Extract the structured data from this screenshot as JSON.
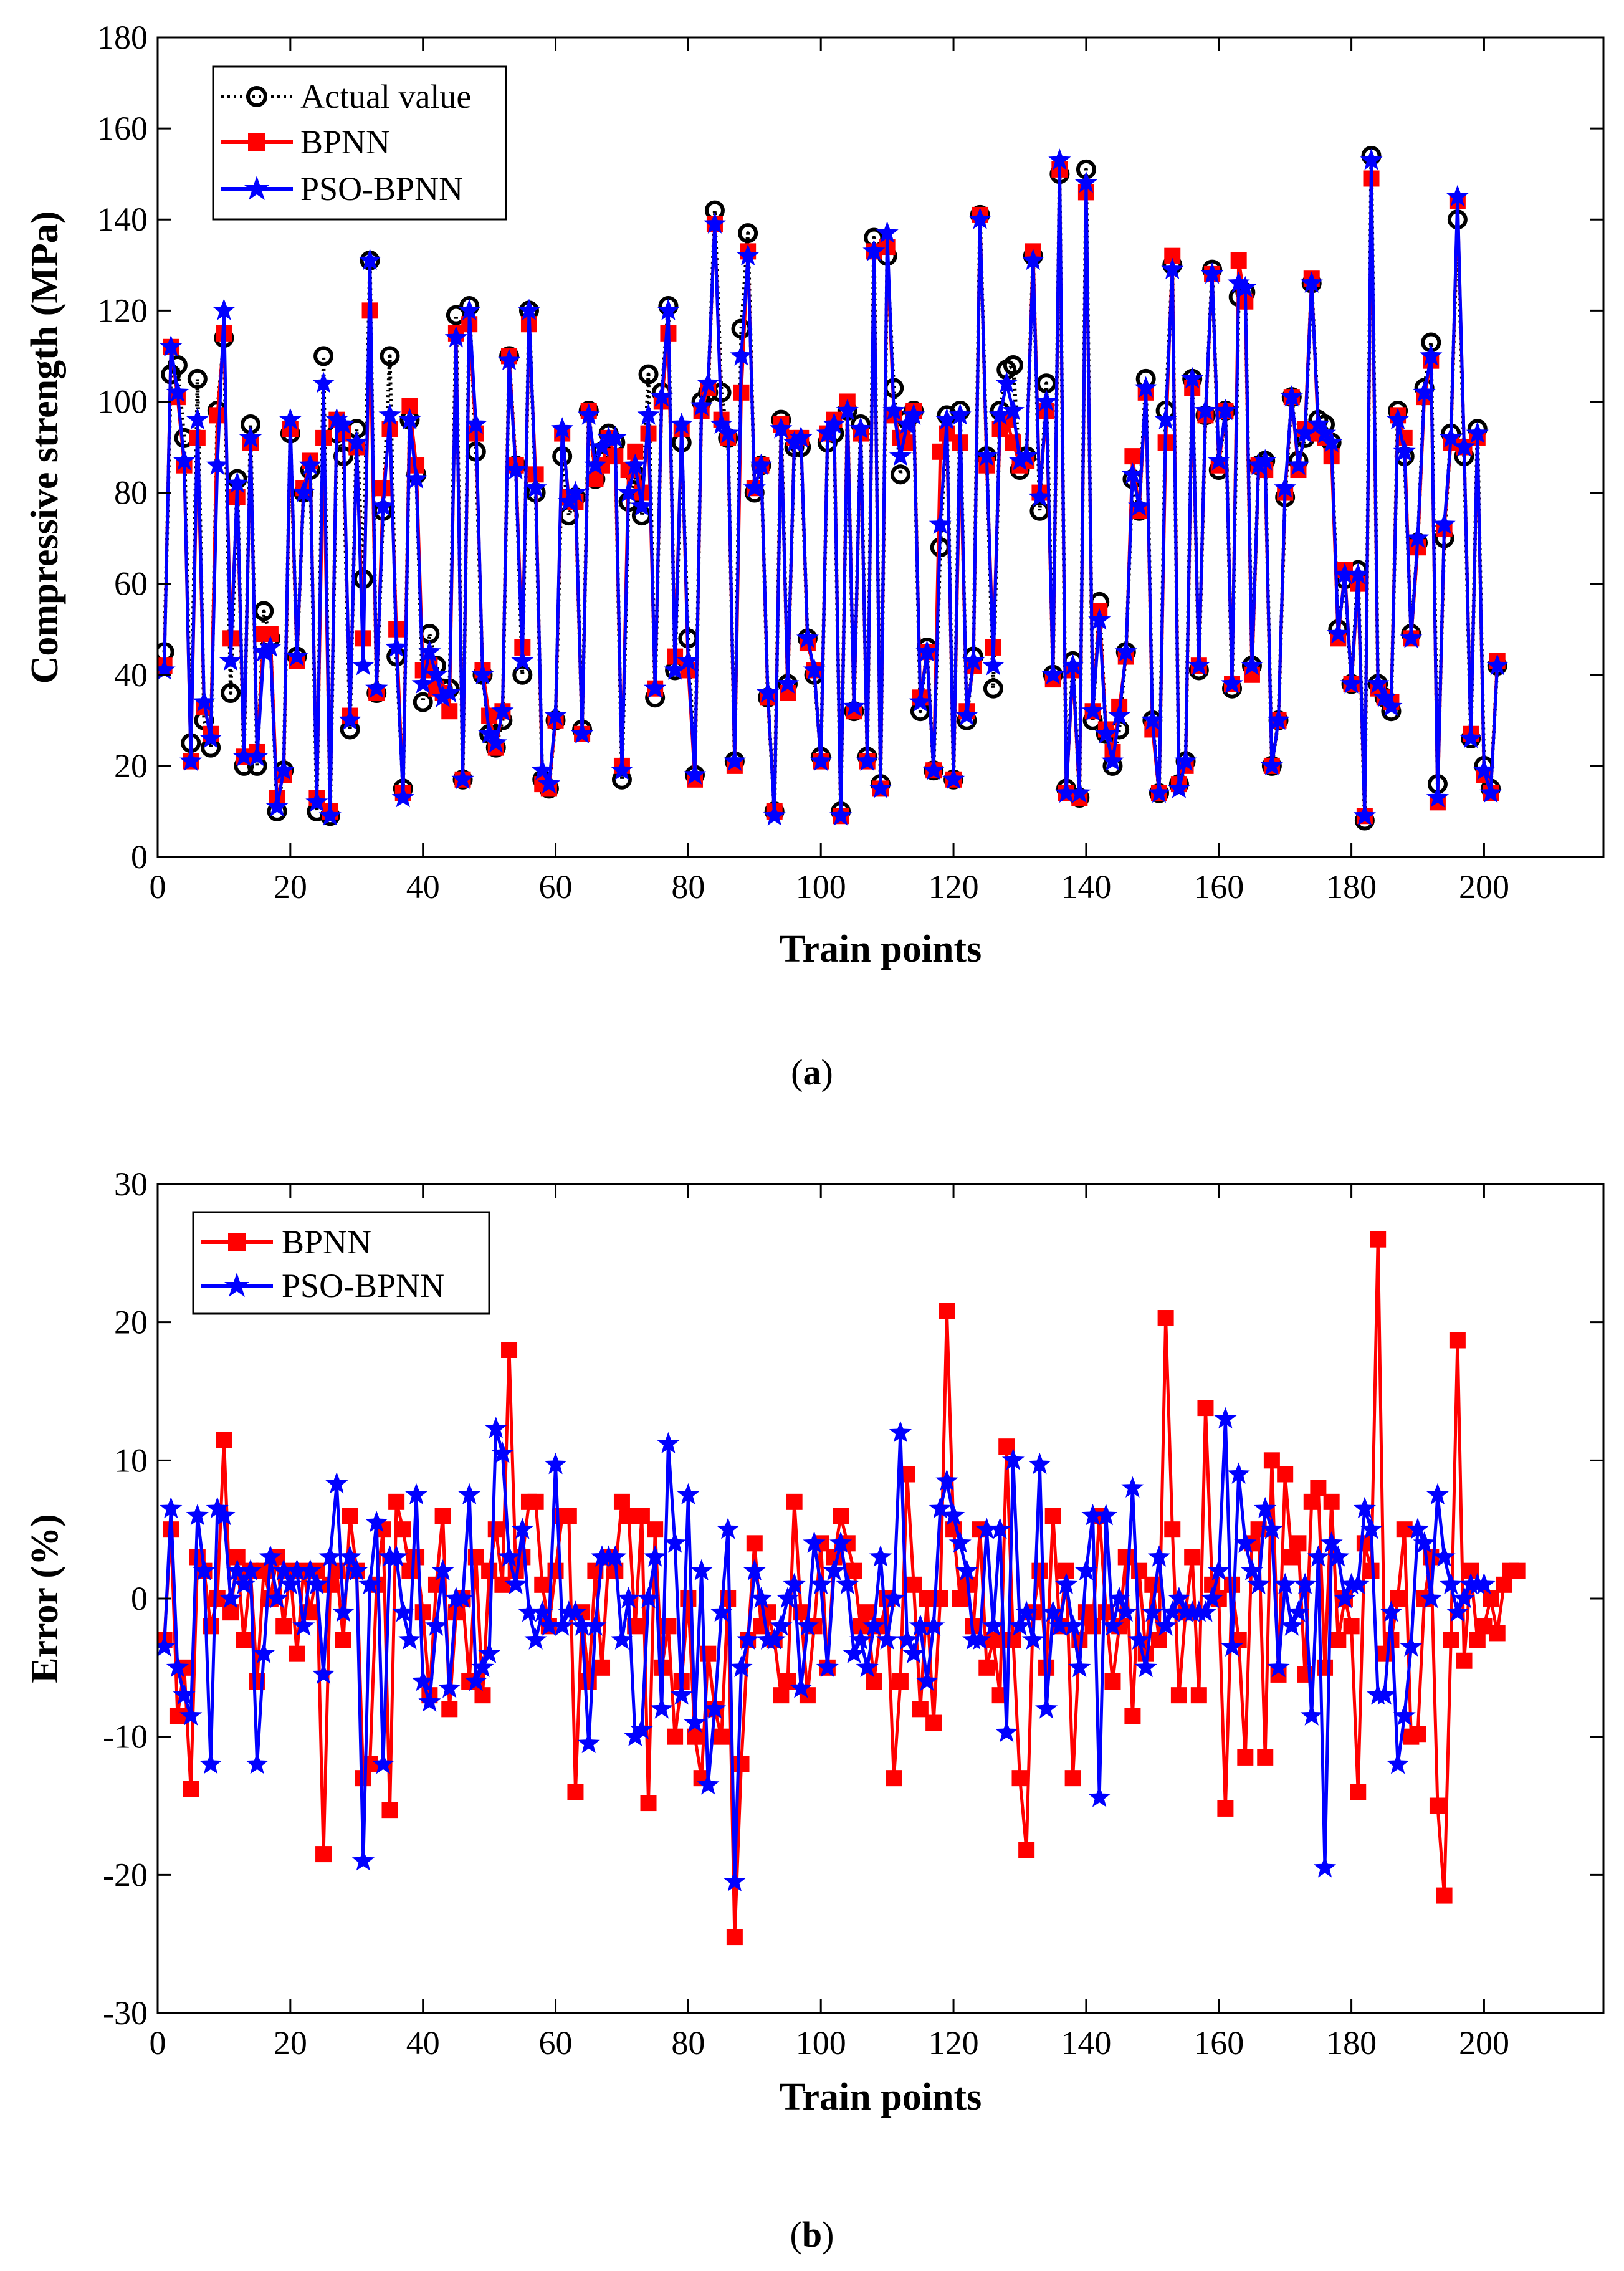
{
  "chart_data": [
    {
      "type": "line",
      "panel": "a",
      "caption_letter": "a",
      "xlabel": "Train points",
      "ylabel": "Compressive strength (MPa)",
      "xlim": [
        0,
        218
      ],
      "ylim": [
        0,
        180
      ],
      "xticks": [
        0,
        20,
        40,
        60,
        80,
        100,
        120,
        140,
        160,
        180,
        200
      ],
      "yticks": [
        0,
        20,
        40,
        60,
        80,
        100,
        120,
        140,
        160,
        180
      ],
      "legend_position": "top-left",
      "grid": false,
      "series": [
        {
          "name": "Actual value",
          "color": "#000000",
          "marker": "circle",
          "line": "dotted",
          "values": [
            45,
            106,
            108,
            92,
            25,
            105,
            30,
            24,
            98,
            114,
            36,
            83,
            20,
            95,
            20,
            54,
            48,
            10,
            19,
            93,
            44,
            80,
            85,
            10,
            110,
            9,
            93,
            88,
            28,
            94,
            61,
            131,
            36,
            76,
            110,
            44,
            15,
            96,
            84,
            34,
            49,
            42,
            37,
            37,
            119,
            17,
            121,
            89,
            40,
            27,
            24,
            30,
            110,
            86,
            40,
            120,
            80,
            17,
            15,
            30,
            88,
            75,
            79,
            28,
            98,
            83,
            89,
            93,
            91,
            17,
            78,
            84,
            75,
            106,
            35,
            102,
            121,
            41,
            91,
            48,
            18,
            100,
            102,
            142,
            102,
            92,
            21,
            116,
            137,
            80,
            86,
            35,
            10,
            96,
            38,
            90,
            90,
            48,
            40,
            22,
            91,
            93,
            10,
            98,
            32,
            95,
            22,
            136,
            16,
            132,
            103,
            84,
            96,
            98,
            32,
            46,
            19,
            68,
            97,
            17,
            98,
            30,
            44,
            141,
            88,
            37,
            98,
            107,
            108,
            85,
            88,
            132,
            76,
            104,
            40,
            150,
            15,
            43,
            13,
            151,
            30,
            56,
            27,
            20,
            28,
            45,
            83,
            76,
            105,
            30,
            14,
            98,
            130,
            16,
            21,
            105,
            41,
            97,
            129,
            85,
            98,
            37,
            123,
            124,
            42,
            86,
            87,
            20,
            30,
            79,
            101,
            87,
            92,
            126,
            96,
            95,
            91,
            50,
            61,
            38,
            63,
            8,
            154,
            38,
            35,
            32,
            98,
            88,
            49,
            69,
            103,
            113,
            16,
            70,
            93,
            140,
            88,
            26,
            94,
            20,
            15,
            42
          ]
        },
        {
          "name": "BPNN",
          "color": "#ff0000",
          "marker": "square",
          "line": "solid",
          "values": [
            42,
            112,
            101,
            86,
            21,
            92,
            33,
            27,
            97,
            115,
            48,
            79,
            22,
            91,
            23,
            49,
            49,
            13,
            18,
            94,
            43,
            81,
            87,
            13,
            92,
            10,
            96,
            93,
            31,
            90,
            48,
            120,
            36,
            81,
            94,
            50,
            14,
            99,
            86,
            41,
            42,
            37,
            36,
            32,
            115,
            17,
            117,
            93,
            41,
            31,
            24,
            32,
            110,
            86,
            46,
            117,
            84,
            16,
            15,
            30,
            93,
            79,
            78,
            27,
            98,
            83,
            86,
            92,
            88,
            20,
            85,
            89,
            80,
            93,
            37,
            100,
            115,
            44,
            94,
            41,
            17,
            98,
            103,
            139,
            96,
            92,
            20,
            102,
            133,
            81,
            86,
            35,
            10,
            95,
            36,
            92,
            92,
            47,
            41,
            21,
            93,
            96,
            9,
            100,
            32,
            93,
            21,
            133,
            15,
            134,
            97,
            92,
            91,
            98,
            35,
            45,
            19,
            89,
            93,
            17,
            91,
            32,
            42,
            141,
            86,
            46,
            94,
            96,
            91,
            86,
            87,
            133,
            80,
            98,
            39,
            151,
            14,
            41,
            13,
            146,
            32,
            54,
            28,
            23,
            33,
            44,
            88,
            76,
            102,
            28,
            14,
            91,
            132,
            16,
            20,
            103,
            42,
            97,
            128,
            86,
            98,
            38,
            131,
            122,
            40,
            86,
            85,
            20,
            30,
            80,
            101,
            85,
            94,
            127,
            93,
            92,
            88,
            48,
            63,
            38,
            60,
            9,
            149,
            37,
            35,
            34,
            97,
            92,
            48,
            68,
            101,
            109,
            12,
            72,
            91,
            144,
            90,
            27,
            92,
            18,
            14,
            43
          ]
        },
        {
          "name": "PSO-BPNN",
          "color": "#0000ff",
          "marker": "star",
          "line": "solid",
          "values": [
            41,
            112,
            102,
            87,
            21,
            96,
            34,
            26,
            86,
            120,
            43,
            82,
            22,
            92,
            22,
            45,
            46,
            11,
            19,
            96,
            44,
            80,
            86,
            12,
            104,
            9,
            96,
            95,
            30,
            91,
            42,
            131,
            37,
            77,
            97,
            46,
            13,
            96,
            83,
            38,
            45,
            40,
            35,
            36,
            114,
            17,
            120,
            95,
            40,
            27,
            25,
            32,
            109,
            85,
            43,
            120,
            81,
            19,
            16,
            31,
            94,
            78,
            80,
            27,
            97,
            86,
            90,
            92,
            92,
            19,
            80,
            86,
            77,
            97,
            37,
            101,
            120,
            41,
            95,
            43,
            18,
            99,
            104,
            139,
            95,
            93,
            21,
            110,
            132,
            81,
            86,
            36,
            9,
            94,
            38,
            91,
            92,
            48,
            41,
            21,
            93,
            95,
            9,
            98,
            33,
            94,
            21,
            133,
            15,
            137,
            98,
            88,
            95,
            97,
            34,
            45,
            19,
            73,
            96,
            17,
            97,
            31,
            43,
            140,
            88,
            42,
            97,
            104,
            98,
            87,
            88,
            131,
            79,
            100,
            40,
            153,
            14,
            42,
            14,
            148,
            32,
            52,
            27,
            21,
            31,
            45,
            84,
            77,
            103,
            30,
            14,
            96,
            129,
            15,
            21,
            105,
            42,
            98,
            128,
            87,
            98,
            38,
            126,
            125,
            42,
            86,
            87,
            20,
            30,
            81,
            101,
            86,
            93,
            126,
            95,
            93,
            91,
            49,
            62,
            38,
            62,
            9,
            153,
            38,
            35,
            33,
            96,
            89,
            48,
            70,
            102,
            110,
            13,
            73,
            92,
            145,
            90,
            26,
            93,
            19,
            14,
            42
          ]
        }
      ]
    },
    {
      "type": "line",
      "panel": "b",
      "caption_letter": "b",
      "xlabel": "Train points",
      "ylabel": "Error (%)",
      "xlim": [
        0,
        218
      ],
      "ylim": [
        -30,
        30
      ],
      "xticks": [
        0,
        20,
        40,
        60,
        80,
        100,
        120,
        140,
        160,
        180,
        200
      ],
      "yticks": [
        -30,
        -20,
        -10,
        0,
        10,
        20,
        30
      ],
      "ytick_labels": [
        "-30",
        "-20",
        "-10",
        "0",
        "10",
        "20",
        "30"
      ],
      "legend_position": "top-left",
      "grid": false,
      "series": [
        {
          "name": "BPNN",
          "color": "#ff0000",
          "marker": "square",
          "values": [
            -3,
            5,
            -8.5,
            -5,
            -13.8,
            3,
            2,
            -2,
            0,
            11.5,
            -1,
            3,
            -3,
            2,
            -6,
            2,
            0,
            3,
            -2,
            2,
            -4,
            2,
            -1,
            2,
            -18.5,
            1,
            2,
            -3,
            6,
            2,
            -13,
            -12,
            1,
            5,
            -15.3,
            7,
            5,
            2,
            3,
            -1,
            -7,
            1,
            6,
            -8,
            -1,
            0,
            -6,
            3,
            -7,
            2,
            5,
            1,
            18,
            2,
            3,
            7,
            7,
            1,
            -2,
            2,
            6,
            6,
            -14,
            -1,
            -6,
            2,
            -5,
            3,
            2,
            7,
            6,
            -2,
            6,
            -14.8,
            5,
            -5,
            -2,
            -10,
            -6,
            0,
            -10,
            -13,
            -4,
            -8,
            -10,
            0,
            -24.5,
            -12,
            -3,
            4,
            -2,
            -1,
            -3,
            -7,
            -6,
            7,
            -1,
            -7,
            -2,
            4,
            -5,
            3,
            6,
            4,
            2,
            -2,
            -1,
            -6,
            -2,
            0,
            -13,
            -6,
            9,
            1,
            -8,
            0,
            -9,
            0,
            20.8,
            5,
            0,
            1,
            -2,
            5,
            -5,
            -3,
            -7,
            11,
            -3,
            -13,
            -18.2,
            -1,
            2,
            -5,
            6,
            -2,
            2,
            -13,
            -3,
            -1,
            -2,
            6,
            -1,
            -6,
            -2,
            3,
            -8.5,
            2,
            -4,
            1,
            -3,
            20.3,
            5,
            -7,
            -1,
            3,
            -7,
            13.8,
            1,
            0,
            -15.2,
            1,
            -3,
            -11.5,
            4,
            5,
            -11.5,
            10,
            -5.5,
            9,
            3,
            4,
            -5.5,
            7,
            8,
            -5,
            7,
            -3,
            0,
            -2,
            -14,
            4,
            2,
            26,
            -4,
            -3,
            0,
            5,
            -10,
            -9.8,
            0,
            3,
            -15,
            -21.5,
            -3,
            18.7,
            -4.5,
            2,
            -3,
            -2,
            0,
            -2.5,
            1,
            2,
            2
          ]
        },
        {
          "name": "PSO-BPNN",
          "color": "#0000ff",
          "marker": "star",
          "values": [
            -3.5,
            6.5,
            -5,
            -7,
            -8.5,
            6,
            2,
            -12,
            6.5,
            6,
            0,
            2,
            1,
            2,
            -12,
            -4,
            3,
            0,
            2,
            1,
            2,
            -2,
            2,
            1,
            -5.5,
            3,
            8.3,
            -1,
            3,
            2,
            -19,
            1,
            5.5,
            -12,
            3,
            3,
            -1,
            -3,
            7.5,
            -6,
            -7.5,
            -2,
            2,
            -6.5,
            0,
            0,
            7.5,
            -6,
            -5,
            -4,
            12.3,
            10.5,
            3,
            1,
            5,
            -1,
            -3,
            -1,
            -2,
            9.7,
            -2,
            -1,
            -1,
            -2,
            -10.5,
            -2,
            3,
            3,
            3,
            -3,
            0,
            -10,
            -9.5,
            0,
            3,
            -8,
            11.2,
            4,
            -7,
            7.5,
            -9,
            2,
            -13.5,
            -8,
            -1,
            5,
            -20.5,
            -5,
            -3,
            2,
            0,
            -3,
            -3,
            -2,
            0,
            1,
            -6.5,
            -2,
            4,
            1,
            -5,
            2,
            4,
            1,
            -4,
            -3,
            -5,
            -2,
            3,
            -3,
            0,
            12,
            -3,
            -4,
            -2,
            -6,
            -2,
            6.5,
            8.5,
            6,
            4,
            2,
            -3,
            -3,
            5,
            -2,
            5,
            -9.7,
            10,
            -2,
            -1,
            -3,
            9.7,
            -8,
            -1,
            -2,
            1,
            -2,
            -5,
            2,
            6,
            -14.4,
            6,
            -2,
            0,
            -1,
            8,
            -3,
            -5,
            -1,
            3,
            -2,
            -1,
            0,
            -1,
            -1,
            -1,
            -1,
            0,
            2,
            13,
            -3.5,
            9,
            4,
            2,
            1,
            6.5,
            5,
            -5,
            1,
            -2,
            -1,
            1,
            -8.5,
            3,
            -19.5,
            4,
            3,
            0,
            1,
            1,
            6.5,
            5,
            -7,
            -7,
            -1,
            -12,
            -8.5,
            -3.5,
            5,
            4,
            0,
            7.5,
            3,
            1,
            -1,
            0,
            1,
            1,
            1
          ]
        }
      ]
    }
  ]
}
